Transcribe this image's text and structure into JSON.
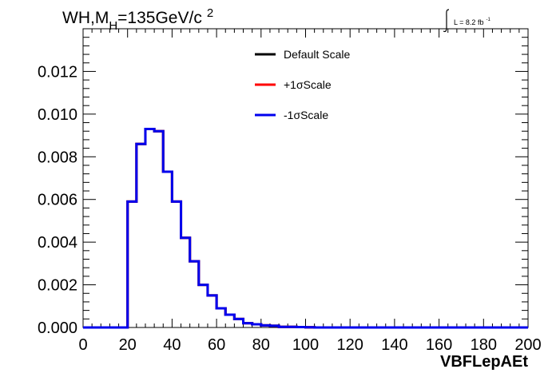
{
  "chart_data": {
    "type": "line",
    "title_main": "WH,M",
    "title_sub": "H",
    "title_rest": "=135GeV/c",
    "title_sup": "2",
    "luminosity_text": "L = 8.2 fb",
    "luminosity_sup": "-1",
    "xlabel": "VBFLepAEt",
    "ylabel": "",
    "xlim": [
      0,
      200
    ],
    "ylim": [
      0,
      0.014
    ],
    "x_ticks": [
      0,
      20,
      40,
      60,
      80,
      100,
      120,
      140,
      160,
      180,
      200
    ],
    "x_tick_labels": [
      "0",
      "20",
      "40",
      "60",
      "80",
      "100",
      "120",
      "140",
      "160",
      "180",
      "200"
    ],
    "y_ticks": [
      0,
      0.002,
      0.004,
      0.006,
      0.008,
      0.01,
      0.012
    ],
    "y_tick_labels": [
      "0.000",
      "0.002",
      "0.004",
      "0.006",
      "0.008",
      "0.010",
      "0.012"
    ],
    "bin_width": 4,
    "bin_edges_start": 0,
    "legend_position": "top-center",
    "series": [
      {
        "name": "Default Scale",
        "color": "#000000",
        "values": [
          0,
          0,
          0,
          0,
          0,
          0.0059,
          0.0086,
          0.0093,
          0.0092,
          0.0073,
          0.0059,
          0.0042,
          0.0031,
          0.002,
          0.0015,
          0.0009,
          0.0006,
          0.0004,
          0.0002,
          0.00015,
          0.0001,
          8e-05,
          3e-05,
          3e-05,
          2e-05,
          1e-05,
          0,
          0,
          0,
          0,
          0,
          0,
          0,
          0,
          0,
          0,
          0,
          0,
          0,
          0,
          0,
          0,
          0,
          0,
          0,
          0,
          0,
          0,
          0,
          0
        ]
      },
      {
        "name": "+1σScale",
        "color": "#ff0000",
        "values": [
          0,
          0,
          0,
          0,
          0,
          0.0059,
          0.0086,
          0.0093,
          0.0092,
          0.0073,
          0.0059,
          0.0042,
          0.0031,
          0.002,
          0.0015,
          0.0009,
          0.0006,
          0.0004,
          0.0002,
          0.00015,
          0.0001,
          8e-05,
          3e-05,
          3e-05,
          2e-05,
          1e-05,
          0,
          0,
          0,
          0,
          0,
          0,
          0,
          0,
          0,
          0,
          0,
          0,
          0,
          0,
          0,
          0,
          0,
          0,
          0,
          0,
          0,
          0,
          0,
          0
        ]
      },
      {
        "name": "-1σScale",
        "color": "#0000ee",
        "values": [
          0,
          0,
          0,
          0,
          0,
          0.0059,
          0.0086,
          0.0093,
          0.0092,
          0.0073,
          0.0059,
          0.0042,
          0.0031,
          0.002,
          0.0015,
          0.0009,
          0.0006,
          0.0004,
          0.0002,
          0.00015,
          0.0001,
          8e-05,
          3e-05,
          3e-05,
          2e-05,
          1e-05,
          0,
          0,
          0,
          0,
          0,
          0,
          0,
          0,
          0,
          0,
          0,
          0,
          0,
          0,
          0,
          0,
          0,
          0,
          0,
          0,
          0,
          0,
          0,
          0
        ]
      }
    ],
    "grid": false
  }
}
